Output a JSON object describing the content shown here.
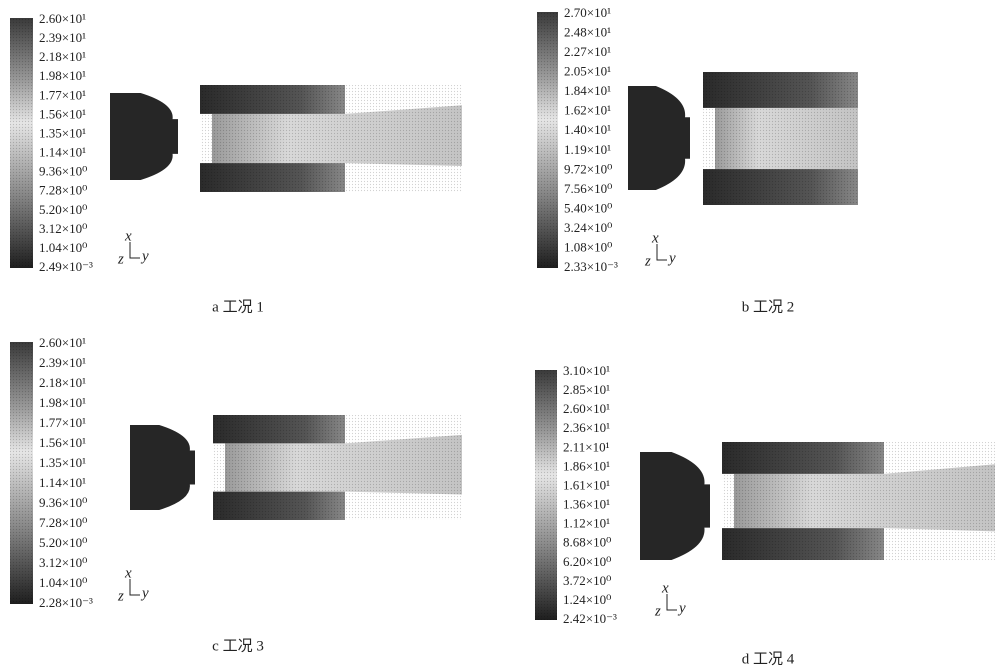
{
  "panels": [
    {
      "caption": "a 工况 1",
      "colorbar_labels": [
        "2.60×10¹",
        "2.39×10¹",
        "2.18×10¹",
        "1.98×10¹",
        "1.77×10¹",
        "1.56×10¹",
        "1.35×10¹",
        "1.14×10¹",
        "9.36×10⁰",
        "7.28×10⁰",
        "5.20×10⁰",
        "3.12×10⁰",
        "1.04×10⁰",
        "2.49×10⁻³"
      ],
      "axis_labels": {
        "x": "x",
        "z": "z",
        "y": "y"
      }
    },
    {
      "caption": "b 工况 2",
      "colorbar_labels": [
        "2.70×10¹",
        "2.48×10¹",
        "2.27×10¹",
        "2.05×10¹",
        "1.84×10¹",
        "1.62×10¹",
        "1.40×10¹",
        "1.19×10¹",
        "9.72×10⁰",
        "7.56×10⁰",
        "5.40×10⁰",
        "3.24×10⁰",
        "1.08×10⁰",
        "2.33×10⁻³"
      ],
      "axis_labels": {
        "x": "x",
        "z": "z",
        "y": "y"
      }
    },
    {
      "caption": "c 工况 3",
      "colorbar_labels": [
        "2.60×10¹",
        "2.39×10¹",
        "2.18×10¹",
        "1.98×10¹",
        "1.77×10¹",
        "1.56×10¹",
        "1.35×10¹",
        "1.14×10¹",
        "9.36×10⁰",
        "7.28×10⁰",
        "5.20×10⁰",
        "3.12×10⁰",
        "1.04×10⁰",
        "2.28×10⁻³"
      ],
      "axis_labels": {
        "x": "x",
        "z": "z",
        "y": "y"
      }
    },
    {
      "caption": "d 工况 4",
      "colorbar_labels": [
        "3.10×10¹",
        "2.85×10¹",
        "2.60×10¹",
        "2.36×10¹",
        "2.11×10¹",
        "1.86×10¹",
        "1.61×10¹",
        "1.36×10¹",
        "1.12×10¹",
        "8.68×10⁰",
        "6.20×10⁰",
        "3.72×10⁰",
        "1.24×10⁰",
        "2.42×10⁻³"
      ],
      "axis_labels": {
        "x": "x",
        "z": "z",
        "y": "y"
      }
    }
  ]
}
